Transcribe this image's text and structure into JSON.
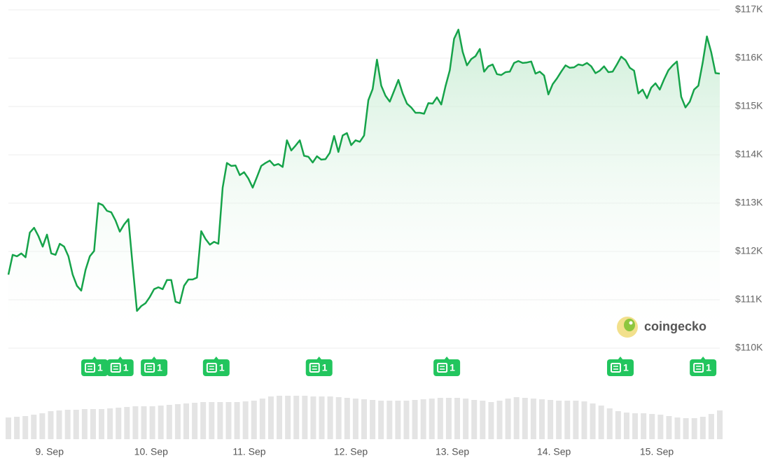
{
  "chart_data": {
    "type": "line",
    "color": "#16a34a",
    "fill_color": "#bfe9cc",
    "grid": true,
    "watermark": "coingecko",
    "ylim": [
      110000,
      117000
    ],
    "yticks": [
      {
        "value": 110000,
        "label": "$110K"
      },
      {
        "value": 111000,
        "label": "$111K"
      },
      {
        "value": 112000,
        "label": "$112K"
      },
      {
        "value": 113000,
        "label": "$113K"
      },
      {
        "value": 114000,
        "label": "$114K"
      },
      {
        "value": 115000,
        "label": "$115K"
      },
      {
        "value": 116000,
        "label": "$116K"
      },
      {
        "value": 117000,
        "label": "$117K"
      }
    ],
    "xlim": [
      0,
      166
    ],
    "xticks": [
      {
        "value": 9.6,
        "label": "9. Sep"
      },
      {
        "value": 33.3,
        "label": "10. Sep"
      },
      {
        "value": 56.2,
        "label": "11. Sep"
      },
      {
        "value": 79.9,
        "label": "12. Sep"
      },
      {
        "value": 103.6,
        "label": "13. Sep"
      },
      {
        "value": 127.3,
        "label": "14. Sep"
      },
      {
        "value": 151.3,
        "label": "15. Sep"
      }
    ],
    "series": [
      {
        "color": "#16a34a",
        "values": [
          111520,
          111930,
          111900,
          111960,
          111880,
          112390,
          112490,
          112320,
          112100,
          112350,
          111960,
          111930,
          112160,
          112100,
          111900,
          111520,
          111290,
          111190,
          111620,
          111900,
          112010,
          113000,
          112960,
          112840,
          112810,
          112640,
          112410,
          112560,
          112670,
          111700,
          110770,
          110870,
          110930,
          111060,
          111220,
          111260,
          111220,
          111410,
          111410,
          110960,
          110930,
          111290,
          111420,
          111420,
          111460,
          112420,
          112260,
          112140,
          112200,
          112160,
          113320,
          113830,
          113770,
          113780,
          113580,
          113640,
          113510,
          113320,
          113540,
          113770,
          113830,
          113880,
          113780,
          113810,
          113750,
          114300,
          114090,
          114190,
          114300,
          113980,
          113960,
          113840,
          113970,
          113900,
          113910,
          114040,
          114390,
          114060,
          114400,
          114450,
          114200,
          114300,
          114270,
          114400,
          115130,
          115360,
          115970,
          115430,
          115220,
          115100,
          115320,
          115550,
          115270,
          115060,
          114980,
          114870,
          114870,
          114850,
          115070,
          115060,
          115190,
          115040,
          115420,
          115750,
          116400,
          116590,
          116130,
          115850,
          115980,
          116040,
          116190,
          115720,
          115830,
          115870,
          115670,
          115650,
          115710,
          115720,
          115900,
          115940,
          115900,
          115910,
          115930,
          115680,
          115720,
          115640,
          115250,
          115460,
          115580,
          115720,
          115850,
          115800,
          115810,
          115870,
          115850,
          115900,
          115830,
          115690,
          115740,
          115830,
          115710,
          115720,
          115870,
          116030,
          115960,
          115800,
          115740,
          115270,
          115350,
          115170,
          115390,
          115480,
          115350,
          115560,
          115750,
          115850,
          115930,
          115200,
          114980,
          115100,
          115350,
          115430,
          115900,
          116450,
          116120,
          115690,
          115680
        ]
      }
    ],
    "volume": {
      "color": "#e4e4e4",
      "values": [
        31,
        32,
        33,
        35,
        37,
        40,
        41,
        42,
        42,
        43,
        43,
        43,
        44,
        45,
        46,
        47,
        47,
        47,
        48,
        49,
        50,
        51,
        52,
        53,
        53,
        53,
        53,
        53,
        54,
        55,
        58,
        61,
        62,
        62,
        62,
        62,
        61,
        61,
        61,
        60,
        59,
        58,
        57,
        56,
        55,
        55,
        55,
        55,
        56,
        57,
        58,
        59,
        59,
        59,
        58,
        56,
        55,
        53,
        55,
        58,
        60,
        59,
        58,
        57,
        56,
        55,
        55,
        55,
        54,
        51,
        48,
        44,
        40,
        38,
        37,
        37,
        36,
        35,
        33,
        31,
        30,
        30,
        32,
        36,
        41
      ]
    },
    "news": [
      {
        "x": 20.1,
        "count": 1
      },
      {
        "x": 26.1,
        "count": 1
      },
      {
        "x": 34,
        "count": 1
      },
      {
        "x": 48.5,
        "count": 1
      },
      {
        "x": 72.5,
        "count": 1
      },
      {
        "x": 102.3,
        "count": 1
      },
      {
        "x": 142.8,
        "count": 1
      },
      {
        "x": 162.1,
        "count": 1
      }
    ],
    "news_color": "#22c55e"
  }
}
